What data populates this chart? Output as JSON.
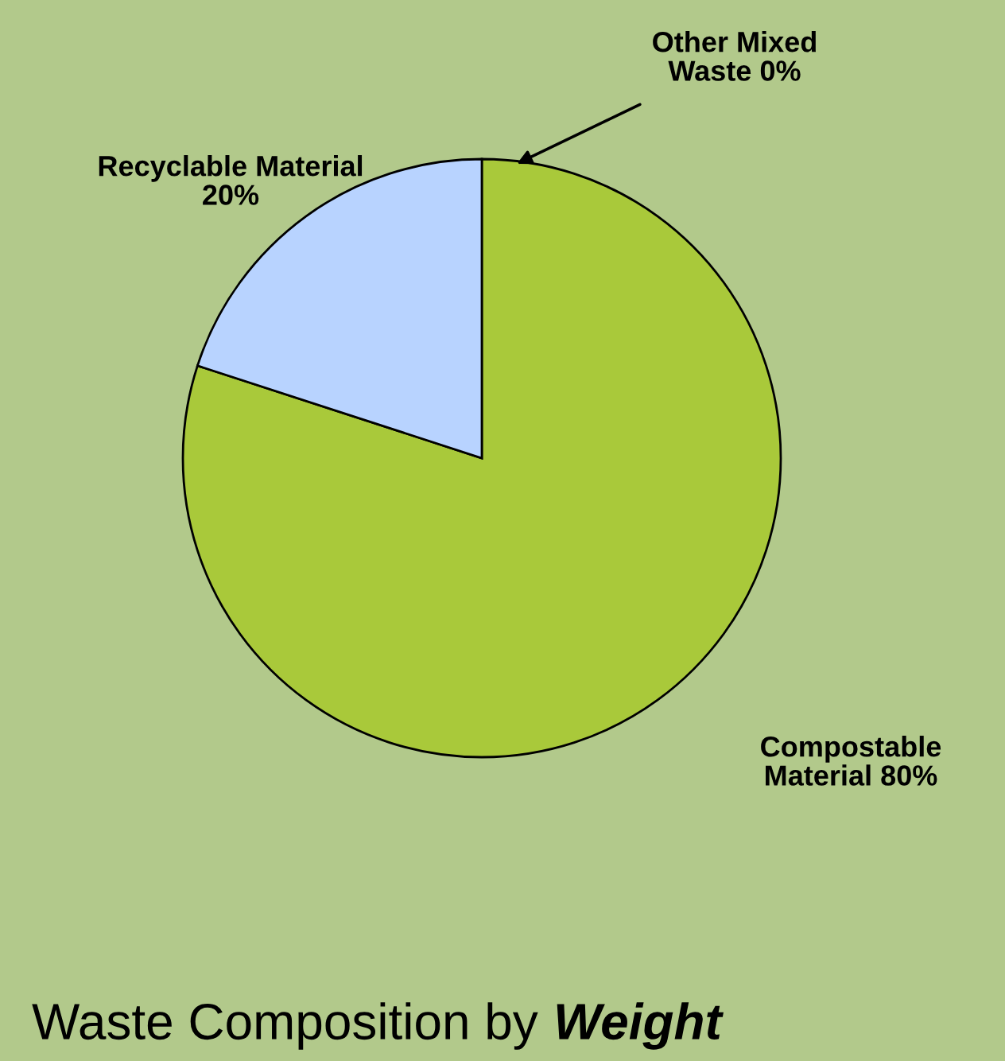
{
  "chart_data": {
    "type": "pie",
    "title": "Waste Composition by Weight",
    "categories": [
      "Other Mixed Waste",
      "Compostable Material",
      "Recyclable Material"
    ],
    "values": [
      0,
      80,
      20
    ],
    "value_labels": [
      "0%",
      "80%",
      "20%"
    ],
    "colors": [
      "#ffffff",
      "#a9c93a",
      "#b8d3ff"
    ],
    "legend": false
  }
}
